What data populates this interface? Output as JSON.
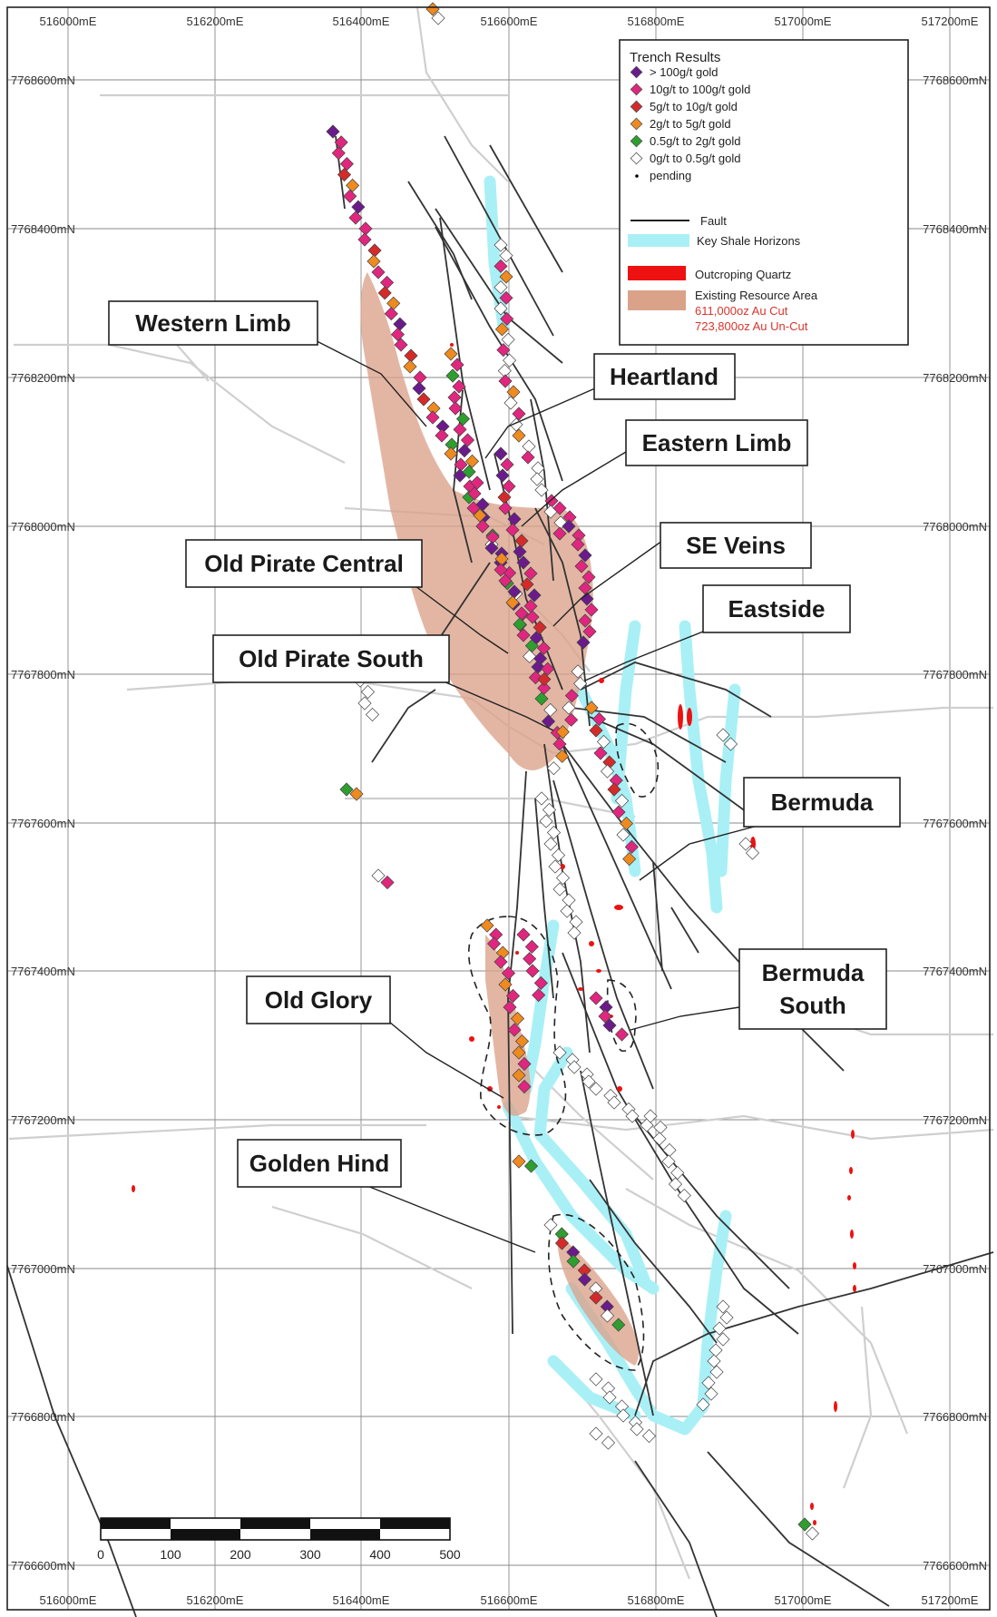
{
  "map": {
    "easting_labels": [
      "516000mE",
      "516200mE",
      "516400mE",
      "516600mE",
      "516800mE",
      "517000mE",
      "517200mE"
    ],
    "northing_labels": [
      "7768600mN",
      "7768400mN",
      "7768200mN",
      "7768000mN",
      "7767800mN",
      "7767600mN",
      "7767400mN",
      "7767200mN",
      "7767000mN",
      "7766800mN",
      "7766600mN"
    ]
  },
  "legend": {
    "title": "Trench Results",
    "grades": [
      {
        "label": "> 100g/t gold",
        "color": "#6a1a8a"
      },
      {
        "label": "10g/t  to  100g/t gold",
        "color": "#e0267e"
      },
      {
        "label": "5g/t    to  10g/t gold",
        "color": "#d52a2a"
      },
      {
        "label": "2g/t    to  5g/t gold",
        "color": "#ef8a1f"
      },
      {
        "label": "0.5g/t to  2g/t gold",
        "color": "#2e9e2e"
      },
      {
        "label": "0g/t    to  0.5g/t gold",
        "color": "#ffffff"
      },
      {
        "label": "pending",
        "color": "#000000"
      }
    ],
    "fault_label": "Fault",
    "shale_label": "Key Shale Horizons",
    "quartz_label": "Outcroping Quartz",
    "resource_label": "Existing Resource Area",
    "resource_cut": "611,000oz Au Cut",
    "resource_uncut": "723,800oz Au Un-Cut",
    "colors": {
      "fault": "#333333",
      "shale": "#a9f0f6",
      "quartz": "#ee1111",
      "resource": "#dba28a"
    }
  },
  "callouts": [
    {
      "id": "western-limb",
      "label": "Western Limb"
    },
    {
      "id": "heartland",
      "label": "Heartland"
    },
    {
      "id": "eastern-limb",
      "label": "Eastern Limb"
    },
    {
      "id": "se-veins",
      "label": "SE Veins"
    },
    {
      "id": "old-pirate-central",
      "label": "Old Pirate Central"
    },
    {
      "id": "eastside",
      "label": "Eastside"
    },
    {
      "id": "old-pirate-south",
      "label": "Old Pirate South"
    },
    {
      "id": "bermuda",
      "label": "Bermuda"
    },
    {
      "id": "bermuda-south-line1",
      "label": "Bermuda"
    },
    {
      "id": "bermuda-south-line2",
      "label": "South"
    },
    {
      "id": "old-glory",
      "label": "Old Glory"
    },
    {
      "id": "golden-hind",
      "label": "Golden Hind"
    }
  ],
  "scale_bar": {
    "ticks": [
      "0",
      "100",
      "200",
      "300",
      "400",
      "500"
    ]
  }
}
